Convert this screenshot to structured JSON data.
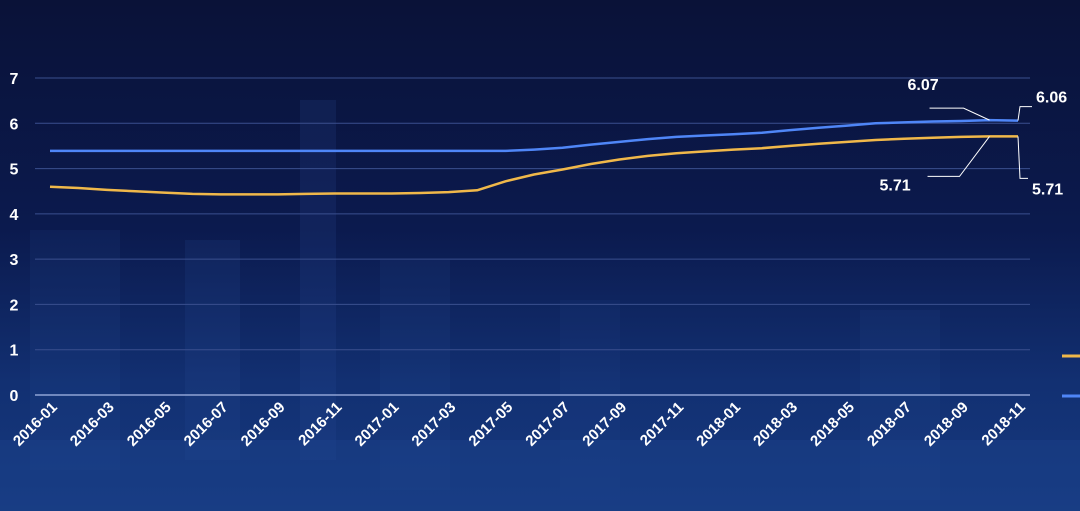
{
  "colors": {
    "background": "#0b1a4e",
    "gridline": "#3a4f8e",
    "text": "#ffffff"
  },
  "chart_data": {
    "type": "line",
    "title": "",
    "xlabel": "",
    "ylabel": "",
    "ylim": [
      0,
      7
    ],
    "yticks": [
      "0",
      "1",
      "2",
      "3",
      "4",
      "5",
      "6",
      "7"
    ],
    "x": [
      "2016-01",
      "2016-02",
      "2016-03",
      "2016-04",
      "2016-05",
      "2016-06",
      "2016-07",
      "2016-08",
      "2016-09",
      "2016-10",
      "2016-11",
      "2016-12",
      "2017-01",
      "2017-02",
      "2017-03",
      "2017-04",
      "2017-05",
      "2017-06",
      "2017-07",
      "2017-08",
      "2017-09",
      "2017-10",
      "2017-11",
      "2017-12",
      "2018-01",
      "2018-02",
      "2018-03",
      "2018-04",
      "2018-05",
      "2018-06",
      "2018-07",
      "2018-08",
      "2018-09",
      "2018-10",
      "2018-11"
    ],
    "xticks": [
      "2016-01",
      "2016-03",
      "2016-05",
      "2016-07",
      "2016-09",
      "2016-11",
      "2017-01",
      "2017-03",
      "2017-05",
      "2017-07",
      "2017-09",
      "2017-11",
      "2018-01",
      "2018-03",
      "2018-05",
      "2018-07",
      "2018-09",
      "2018-11"
    ],
    "grid": true,
    "legend": "right",
    "series": [
      {
        "color": "#f0b84a",
        "values": [
          4.6,
          4.57,
          4.53,
          4.5,
          4.47,
          4.44,
          4.43,
          4.43,
          4.43,
          4.44,
          4.45,
          4.45,
          4.45,
          4.46,
          4.48,
          4.52,
          4.72,
          4.87,
          4.98,
          5.1,
          5.2,
          5.28,
          5.34,
          5.38,
          5.42,
          5.45,
          5.5,
          5.55,
          5.59,
          5.63,
          5.66,
          5.68,
          5.7,
          5.71,
          5.71
        ]
      },
      {
        "color": "#4f86f7",
        "values": [
          5.39,
          5.39,
          5.39,
          5.39,
          5.39,
          5.39,
          5.39,
          5.39,
          5.39,
          5.39,
          5.39,
          5.39,
          5.39,
          5.39,
          5.39,
          5.39,
          5.39,
          5.42,
          5.46,
          5.53,
          5.59,
          5.65,
          5.7,
          5.73,
          5.76,
          5.79,
          5.85,
          5.9,
          5.95,
          6.0,
          6.02,
          6.04,
          6.05,
          6.07,
          6.06
        ]
      }
    ],
    "annotations": [
      {
        "text": "6.07",
        "series": 1,
        "index": 33
      },
      {
        "text": "6.06",
        "series": 1,
        "index": 34
      },
      {
        "text": "5.71",
        "series": 0,
        "index": 33
      },
      {
        "text": "5.71",
        "series": 0,
        "index": 34
      }
    ]
  }
}
